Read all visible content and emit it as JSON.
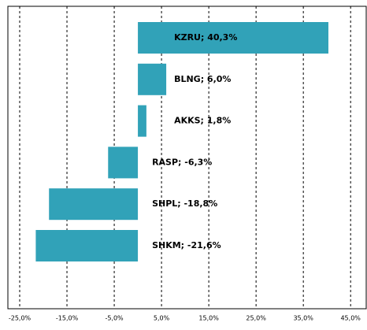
{
  "chart_data": {
    "type": "barh",
    "values": [
      40.3,
      6.0,
      1.8,
      -6.3,
      -18.8,
      -21.6
    ],
    "value_labels": [
      "KZRU; 40,3%",
      "BLNG; 6,0%",
      "AKKS; 1,8%",
      "RASP; -6,3%",
      "SHPL; -18,8%",
      "SHKM; -21,6%"
    ],
    "color": "#31a2b8",
    "xlim": [
      -27.5,
      48.3
    ],
    "xticks": [
      {
        "value": -25,
        "label": "-25,0%"
      },
      {
        "value": -15,
        "label": "-15,0%"
      },
      {
        "value": -5,
        "label": "-5,0%"
      },
      {
        "value": 5,
        "label": "5,0%"
      },
      {
        "value": 15,
        "label": "15,0%"
      },
      {
        "value": 25,
        "label": "25,0%"
      },
      {
        "value": 35,
        "label": "35,0%"
      },
      {
        "value": 45,
        "label": "45,0%"
      }
    ],
    "grid": true
  }
}
